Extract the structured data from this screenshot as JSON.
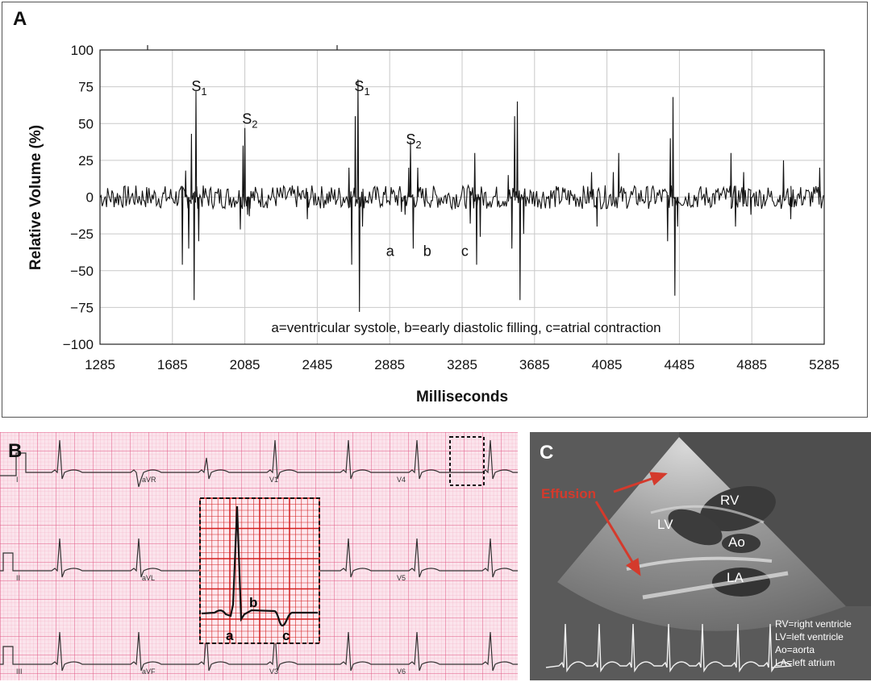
{
  "panels": {
    "a": "A",
    "b": "B",
    "c": "C"
  },
  "chart_data": {
    "type": "line",
    "xlabel": "Milliseconds",
    "ylabel": "Relative Volume (%)",
    "xlim": [
      1285,
      5285
    ],
    "ylim": [
      -100,
      100
    ],
    "x_ticks": [
      "1285",
      "1685",
      "2085",
      "2485",
      "2885",
      "3285",
      "3685",
      "4085",
      "4485",
      "4885",
      "5285"
    ],
    "y_ticks": [
      "100",
      "75",
      "50",
      "25",
      "0",
      "−25",
      "−50",
      "−75",
      "−100"
    ],
    "grid": true,
    "caption": "a=ventricular systole, b=early diastolic filling, c=atrial contraction",
    "spikes": [
      {
        "x": 1740,
        "y": -46
      },
      {
        "x": 1758,
        "y": 18
      },
      {
        "x": 1775,
        "y": -35
      },
      {
        "x": 1790,
        "y": 43
      },
      {
        "x": 1805,
        "y": -70
      },
      {
        "x": 1815,
        "y": 72
      },
      {
        "x": 1830,
        "y": -30
      },
      {
        "x": 2060,
        "y": -22
      },
      {
        "x": 2075,
        "y": 35
      },
      {
        "x": 2085,
        "y": 47
      },
      {
        "x": 2100,
        "y": -12
      },
      {
        "x": 2110,
        "y": -13
      },
      {
        "x": 2430,
        "y": -15
      },
      {
        "x": 2660,
        "y": 20
      },
      {
        "x": 2675,
        "y": -46
      },
      {
        "x": 2695,
        "y": 55
      },
      {
        "x": 2710,
        "y": 80
      },
      {
        "x": 2718,
        "y": -78
      },
      {
        "x": 2735,
        "y": -20
      },
      {
        "x": 2950,
        "y": -10
      },
      {
        "x": 2970,
        "y": -12
      },
      {
        "x": 2990,
        "y": 20
      },
      {
        "x": 3000,
        "y": 38
      },
      {
        "x": 3015,
        "y": -35
      },
      {
        "x": 3040,
        "y": 20
      },
      {
        "x": 3330,
        "y": -18
      },
      {
        "x": 3355,
        "y": 30
      },
      {
        "x": 3365,
        "y": -46
      },
      {
        "x": 3385,
        "y": -27
      },
      {
        "x": 3540,
        "y": 15
      },
      {
        "x": 3560,
        "y": -35
      },
      {
        "x": 3575,
        "y": 55
      },
      {
        "x": 3590,
        "y": 65
      },
      {
        "x": 3605,
        "y": -70
      },
      {
        "x": 3625,
        "y": -25
      },
      {
        "x": 4000,
        "y": 17
      },
      {
        "x": 4030,
        "y": -20
      },
      {
        "x": 4120,
        "y": 17
      },
      {
        "x": 4150,
        "y": 30
      },
      {
        "x": 4420,
        "y": -30
      },
      {
        "x": 4435,
        "y": 40
      },
      {
        "x": 4450,
        "y": 68
      },
      {
        "x": 4460,
        "y": -67
      },
      {
        "x": 4475,
        "y": -20
      },
      {
        "x": 4770,
        "y": 30
      },
      {
        "x": 4795,
        "y": -20
      },
      {
        "x": 4840,
        "y": 17
      },
      {
        "x": 4880,
        "y": -12
      },
      {
        "x": 5060,
        "y": 25
      },
      {
        "x": 5100,
        "y": -15
      },
      {
        "x": 5260,
        "y": 20
      }
    ],
    "noise_amplitude": 8,
    "annotations": [
      {
        "text": "S",
        "sub": "1",
        "x": 1790,
        "y": 72
      },
      {
        "text": "S",
        "sub": "2",
        "x": 2070,
        "y": 50
      },
      {
        "text": "S",
        "sub": "1",
        "x": 2690,
        "y": 72
      },
      {
        "text": "S",
        "sub": "2",
        "x": 2975,
        "y": 36
      },
      {
        "text": "a",
        "x": 2865,
        "y": -40
      },
      {
        "text": "b",
        "x": 3070,
        "y": -40
      },
      {
        "text": "c",
        "x": 3280,
        "y": -40
      }
    ]
  },
  "ecg": {
    "leads": [
      "I",
      "aVR",
      "V1",
      "V4",
      "II",
      "aVL",
      "V5",
      "III",
      "aVF",
      "V3",
      "V6"
    ],
    "inset_labels": {
      "a": "a",
      "b": "b",
      "c": "c"
    }
  },
  "echo": {
    "effusion_label": "Effusion",
    "structure_labels": {
      "rv": "RV",
      "lv": "LV",
      "ao": "Ao",
      "la": "LA"
    },
    "legend": [
      "RV=right ventricle",
      "LV=left ventricle",
      "Ao=aorta",
      "LA=left atrium"
    ]
  },
  "colors": {
    "ecg_paper": "#fbe4ec",
    "ecg_grid_minor": "#f2a6bd",
    "ecg_grid_major": "#e25a86",
    "inset_grid": "#d42020",
    "effusion": "#d43a2c",
    "echo_background": "#5a5a5a"
  }
}
